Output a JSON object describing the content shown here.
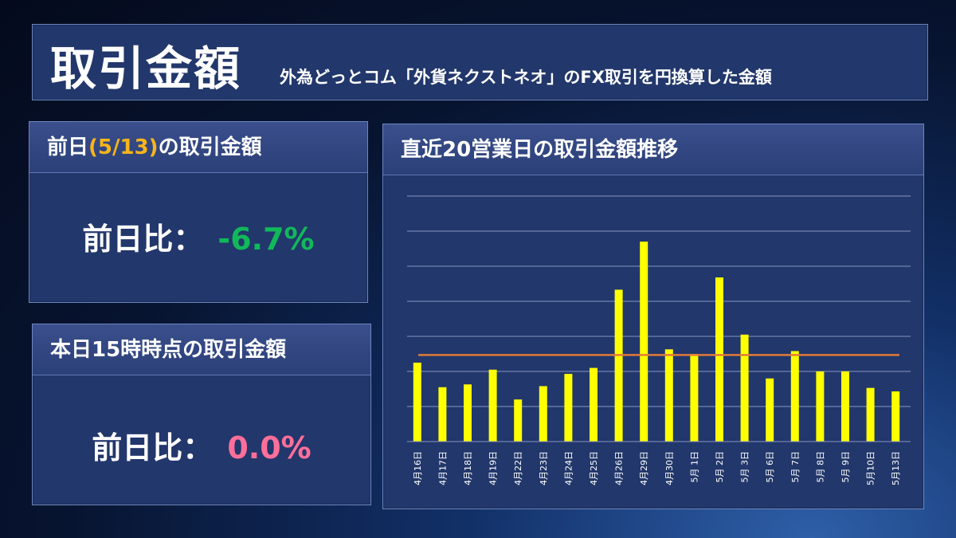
{
  "header": {
    "title": "取引金額",
    "subtitle": "外為どっとコム「外貨ネクストネオ」のFX取引を円換算した金額"
  },
  "prev_card": {
    "title_prefix": "前日",
    "title_date": "(5/13)",
    "title_suffix": "の取引金額",
    "label": "前日比：",
    "value": "-6.7%",
    "value_color": "#11b85a"
  },
  "today_card": {
    "title": "本日15時時点の取引金額",
    "label": "前日比：",
    "value": "0.0%",
    "value_color": "#ff6f9a"
  },
  "chart_card": {
    "title": "直近20営業日の取引金額推移"
  },
  "chart_data": {
    "type": "bar",
    "categories": [
      "4月16日",
      "4月17日",
      "4月18日",
      "4月19日",
      "4月22日",
      "4月23日",
      "4月24日",
      "4月25日",
      "4月26日",
      "4月29日",
      "4月30日",
      "5月 1日",
      "5月 2日",
      "5月 3日",
      "5月 6日",
      "5月 7日",
      "5月 8日",
      "5月 9日",
      "5月10日",
      "5月13日"
    ],
    "series": [
      {
        "values": [
          2.25,
          1.55,
          1.63,
          2.05,
          1.2,
          1.58,
          1.93,
          2.1,
          4.33,
          5.7,
          2.63,
          2.5,
          4.68,
          3.05,
          1.8,
          2.58,
          2.0,
          2.0,
          1.53,
          1.43
        ],
        "color": "#ffff00"
      }
    ],
    "average_line": {
      "value": 2.47,
      "color": "#e07b39"
    },
    "ylim": [
      0,
      7
    ],
    "grid": true,
    "gridlines": 7,
    "ytick_labels_shown": false,
    "legend": "none"
  }
}
